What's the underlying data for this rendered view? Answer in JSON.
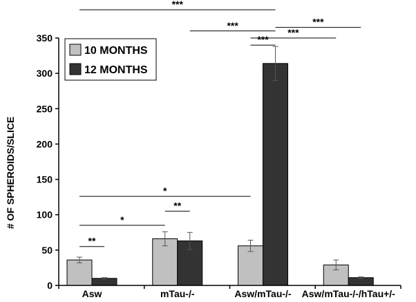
{
  "chart_data": {
    "type": "bar",
    "title": "",
    "xlabel": "",
    "ylabel": "# OF  SPHEROIDS/SLICE",
    "ylim": [
      0,
      350
    ],
    "yticks": [
      0,
      50,
      100,
      150,
      200,
      250,
      300,
      350
    ],
    "categories": [
      "Asw",
      "mTau-/-",
      "Asw/mTau-/-",
      "Asw/mTau-/-/hTau+/-"
    ],
    "series": [
      {
        "name": "10 MONTHS",
        "color": "#c0c0c0",
        "values": [
          36,
          66,
          56,
          29
        ],
        "errors": [
          4,
          10,
          8,
          7
        ]
      },
      {
        "name": "12 MONTHS",
        "color": "#333333",
        "values": [
          10,
          63,
          314,
          11
        ],
        "errors": [
          1,
          12,
          24,
          1
        ]
      }
    ],
    "legend": {
      "position": "top-left"
    },
    "grid": false,
    "significance": [
      {
        "from_category": 0,
        "from_series": 0,
        "to_category": 0,
        "to_series": 1,
        "y": 55,
        "label": "**"
      },
      {
        "from_category": 0,
        "from_series": 0,
        "to_category": 1,
        "to_series": 0,
        "y": 85,
        "label": "*"
      },
      {
        "from_category": 1,
        "from_series": 0,
        "to_category": 1,
        "to_series": 1,
        "y": 105,
        "label": "**"
      },
      {
        "from_category": 0,
        "from_series": 0,
        "to_category": 2,
        "to_series": 0,
        "y": 126,
        "label": "*"
      },
      {
        "from_category": 2,
        "from_series": 0,
        "to_category": 2,
        "to_series": 1,
        "y": 340,
        "label": "***"
      },
      {
        "from_category": 2,
        "from_series": 0,
        "to_category": 3,
        "to_series": 0,
        "y": 350,
        "label": "***"
      },
      {
        "from_category": 1,
        "from_series": 1,
        "to_category": 2,
        "to_series": 1,
        "y": 360,
        "label": "***"
      },
      {
        "from_category": 2,
        "from_series": 1,
        "to_category": 3,
        "to_series": 1,
        "y": 365,
        "label": "***"
      },
      {
        "from_category": 0,
        "from_series": 0,
        "to_category": 2,
        "to_series": 1,
        "y": 390,
        "label": "***"
      }
    ]
  }
}
